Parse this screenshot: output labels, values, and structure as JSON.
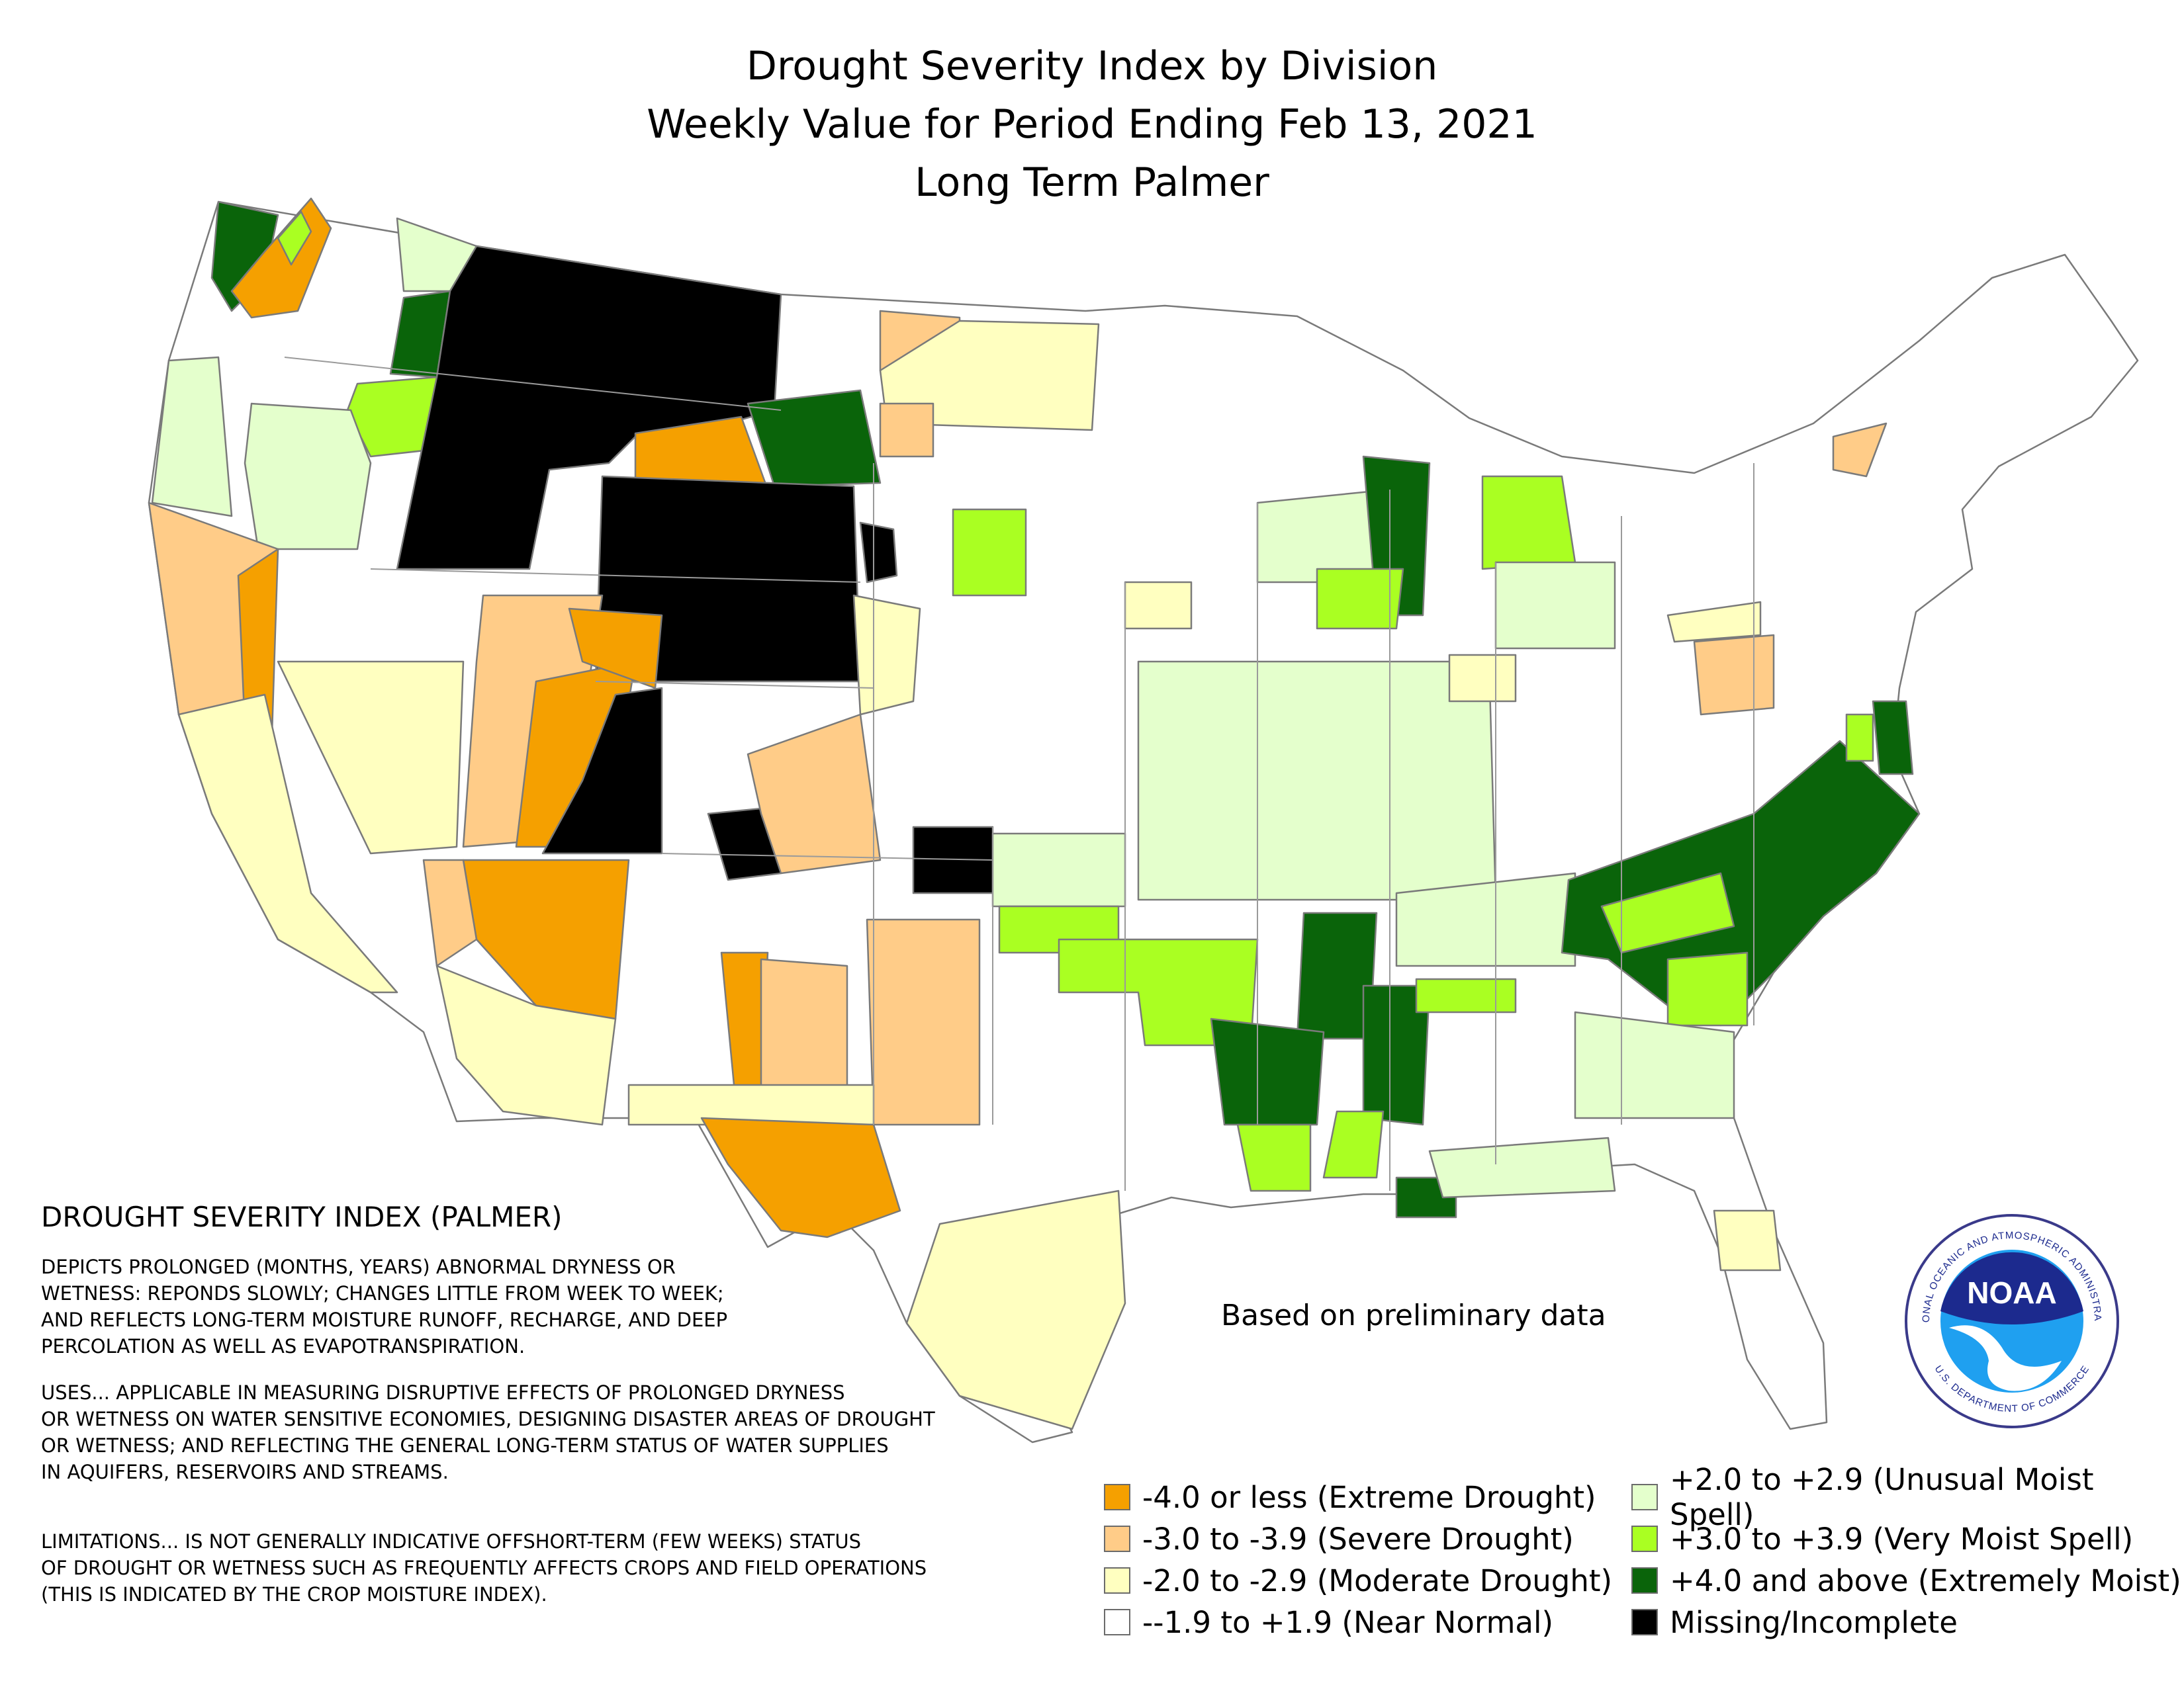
{
  "title": {
    "line1": "Drought Severity Index by Division",
    "line2": "Weekly Value for Period Ending Feb 13, 2021",
    "line3": "Long Term Palmer"
  },
  "description": {
    "heading": "DROUGHT SEVERITY INDEX (PALMER)",
    "depicts": "DEPICTS PROLONGED (MONTHS, YEARS) ABNORMAL DRYNESS OR\nWETNESS: REPONDS SLOWLY; CHANGES LITTLE FROM WEEK TO WEEK;\nAND REFLECTS LONG-TERM MOISTURE RUNOFF, RECHARGE, AND DEEP\nPERCOLATION AS WELL AS EVAPOTRANSPIRATION.",
    "uses": "USES... APPLICABLE IN MEASURING DISRUPTIVE EFFECTS OF PROLONGED DRYNESS\nOR WETNESS ON WATER SENSITIVE ECONOMIES, DESIGNING DISASTER AREAS OF DROUGHT\nOR WETNESS; AND REFLECTING THE GENERAL LONG-TERM STATUS OF WATER SUPPLIES\nIN AQUIFERS, RESERVOIRS AND STREAMS.",
    "limitations": "LIMITATIONS... IS NOT GENERALLY INDICATIVE OFFSHORT-TERM (FEW WEEKS) STATUS\nOF DROUGHT OR WETNESS SUCH AS FREQUENTLY AFFECTS CROPS AND FIELD OPERATIONS\n(THIS IS INDICATED BY THE CROP MOISTURE INDEX)."
  },
  "note": "Based on preliminary data",
  "legend": [
    {
      "label": "-4.0 or less (Extreme Drought)",
      "color": "#f5a000"
    },
    {
      "label": "-3.0 to -3.9 (Severe Drought)",
      "color": "#ffcc88"
    },
    {
      "label": "-2.0 to -2.9 (Moderate Drought)",
      "color": "#ffffc0"
    },
    {
      "label": "--1.9 to +1.9 (Near Normal)",
      "color": "#ffffff"
    },
    {
      "label": "+2.0 to +2.9 (Unusual Moist Spell)",
      "color": "#e4ffcc"
    },
    {
      "label": "+3.0 to +3.9 (Very Moist Spell)",
      "color": "#aaff22"
    },
    {
      "label": "+4.0 and above (Extremely Moist)",
      "color": "#0a640a"
    },
    {
      "label": "Missing/Incomplete",
      "color": "#000000"
    }
  ],
  "logo": {
    "text": "NOAA",
    "ring_top": "NATIONAL OCEANIC AND ATMOSPHERIC ADMINISTRATION",
    "ring_bottom": "U.S. DEPARTMENT OF COMMERCE"
  }
}
